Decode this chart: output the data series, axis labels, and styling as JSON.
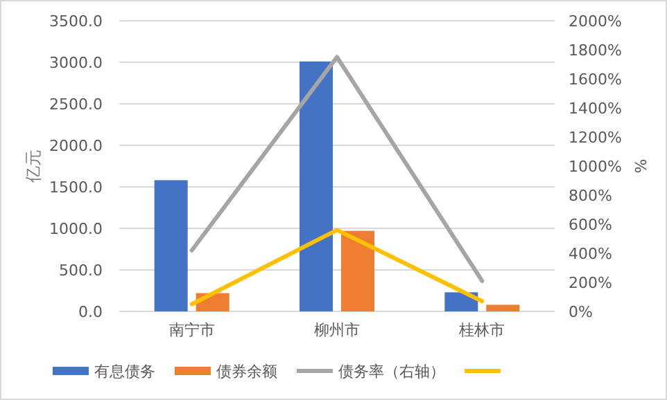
{
  "chart_data": {
    "type": "bar",
    "categories": [
      "南宁市",
      "柳州市",
      "桂林市"
    ],
    "ylabel": "亿元",
    "y2label": "%",
    "series": [
      {
        "name": "有息债务",
        "color": "#4472c4",
        "values": [
          1580,
          3010,
          230
        ]
      },
      {
        "name": "债券余额",
        "color": "#ed7d31",
        "values": [
          220,
          970,
          80
        ]
      },
      {
        "name": "债务率（右轴）",
        "color": "#a5a5a5",
        "type": "line",
        "axis": "y2",
        "values": [
          420,
          1750,
          210
        ]
      },
      {
        "color": "#ffc000",
        "type": "line",
        "axis": "y2",
        "values": [
          50,
          560,
          70
        ]
      }
    ],
    "ylim": [
      0,
      3500
    ],
    "yticks": [
      {
        "value": 0,
        "label": "0.0"
      },
      {
        "value": 500,
        "label": "500.0"
      },
      {
        "value": 1000,
        "label": "1000.0"
      },
      {
        "value": 1500,
        "label": "1500.0"
      },
      {
        "value": 2000,
        "label": "2000.0"
      },
      {
        "value": 2500,
        "label": "2500.0"
      },
      {
        "value": 3000,
        "label": "3000.0"
      },
      {
        "value": 3500,
        "label": "3500.0"
      }
    ],
    "y2lim": [
      0,
      2000
    ],
    "y2ticks": [
      {
        "value": 0,
        "label": "0%"
      },
      {
        "value": 200,
        "label": "200%"
      },
      {
        "value": 400,
        "label": "400%"
      },
      {
        "value": 600,
        "label": "600%"
      },
      {
        "value": 800,
        "label": "800%"
      },
      {
        "value": 1000,
        "label": "1000%"
      },
      {
        "value": 1200,
        "label": "1200%"
      },
      {
        "value": 1400,
        "label": "1400%"
      },
      {
        "value": 1600,
        "label": "1600%"
      },
      {
        "value": 1800,
        "label": "1800%"
      },
      {
        "value": 2000,
        "label": "2000%"
      }
    ],
    "grid": "y",
    "legend": "bottom",
    "marker": "none",
    "line_style": "solid"
  }
}
